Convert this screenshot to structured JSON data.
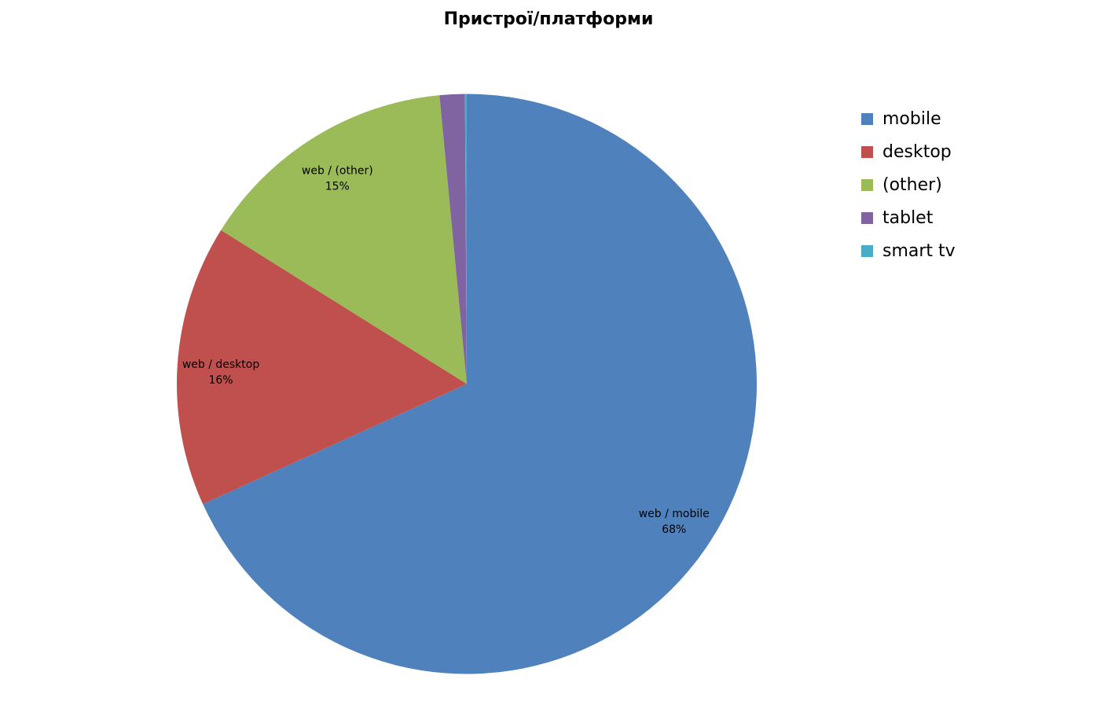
{
  "chart_data": {
    "type": "pie",
    "title": "Пристрої/платформи",
    "start_angle": "12 o'clock, clockwise",
    "legend_position": "right",
    "slices": [
      {
        "name": "mobile",
        "category": "web",
        "value": 68.2,
        "label": "web / mobile",
        "pct_label": "68%",
        "color": "#4F81BD"
      },
      {
        "name": "desktop",
        "category": "web",
        "value": 15.7,
        "label": "web / desktop",
        "pct_label": "16%",
        "color": "#C0504D"
      },
      {
        "name": "(other)",
        "category": "web",
        "value": 14.6,
        "label": "web / (other)",
        "pct_label": "15%",
        "color": "#9BBB59"
      },
      {
        "name": "tablet",
        "category": "web",
        "value": 1.4,
        "label": "",
        "pct_label": "",
        "color": "#8064A2"
      },
      {
        "name": "smart tv",
        "category": "web",
        "value": 0.1,
        "label": "",
        "pct_label": "",
        "color": "#4BACC6"
      }
    ]
  }
}
